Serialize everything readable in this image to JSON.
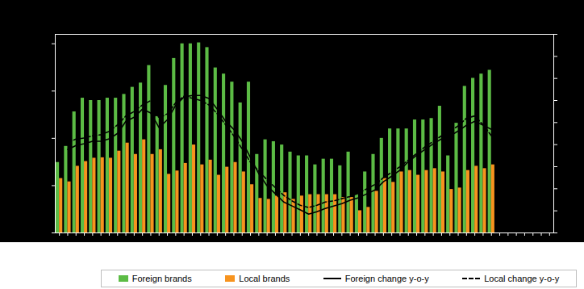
{
  "chart_data": {
    "type": "bar",
    "categories": [
      null,
      null,
      null,
      null,
      null,
      null,
      null,
      null,
      null,
      null,
      null,
      null,
      null,
      null,
      null,
      null,
      null,
      null,
      null,
      null,
      null,
      null,
      null,
      null,
      null,
      null,
      null,
      null,
      null,
      null,
      null,
      null,
      null,
      null,
      null,
      null,
      null,
      null,
      null,
      null,
      null,
      null,
      null,
      null,
      null,
      null,
      null,
      null,
      null,
      null,
      null,
      null,
      null,
      null,
      null,
      null,
      null,
      null,
      null,
      null
    ],
    "series": [
      {
        "name": "Foreign brands",
        "type": "bar",
        "color": "#5cbc45",
        "values": [
          14.9,
          18.3,
          25.6,
          28.5,
          28.0,
          28.0,
          28.5,
          28.5,
          29.3,
          30.8,
          31.7,
          35.4,
          24.6,
          31.2,
          36.9,
          40.0,
          40.0,
          40.2,
          39.2,
          34.9,
          33.6,
          31.9,
          27.5,
          31.9,
          16.6,
          19.7,
          19.3,
          18.6,
          17.1,
          16.3,
          16.3,
          14.4,
          15.6,
          15.6,
          14.2,
          17.1,
          8.1,
          12.9,
          16.6,
          20.0,
          22.0,
          22.0,
          22.0,
          23.9,
          23.9,
          24.2,
          26.8,
          16.3,
          23.2,
          31.0,
          32.7,
          33.6,
          34.4,
          null,
          null,
          null,
          null,
          null,
          null,
          null
        ]
      },
      {
        "name": "Local brands",
        "type": "bar",
        "color": "#f7931e",
        "values": [
          11.5,
          10.8,
          14.1,
          15.1,
          15.8,
          15.9,
          15.8,
          17.3,
          19.0,
          16.6,
          19.7,
          16.6,
          17.6,
          12.4,
          13.1,
          14.7,
          18.6,
          14.4,
          15.4,
          12.2,
          13.9,
          14.9,
          12.9,
          10.2,
          7.3,
          7.1,
          7.8,
          8.5,
          7.1,
          7.8,
          8.1,
          8.1,
          8.1,
          8.1,
          7.5,
          7.5,
          4.7,
          5.4,
          8.8,
          11.5,
          10.7,
          12.9,
          13.2,
          12.2,
          13.2,
          13.6,
          12.9,
          9.2,
          9.5,
          13.2,
          14.1,
          13.6,
          14.4,
          null,
          null,
          null,
          null,
          null,
          null,
          null
        ]
      },
      {
        "name": "Foreign change y-o-y",
        "type": "line",
        "axis": "y2",
        "color": "#000000",
        "line_style": "solid",
        "values": [
          null,
          -2.2,
          -0.4,
          0.4,
          1.5,
          1.5,
          2.6,
          5.1,
          10.6,
          12.4,
          16.1,
          14.3,
          7.7,
          11.3,
          17.9,
          21.6,
          22.3,
          22.3,
          20.9,
          16.1,
          10.6,
          6.9,
          1.5,
          -5.9,
          -13.2,
          -18.7,
          -22.3,
          -26.0,
          -27.8,
          -29.6,
          -31.5,
          -30.4,
          -28.9,
          -27.8,
          -26.7,
          -25.2,
          -24.1,
          -22.3,
          -20.5,
          -16.8,
          -14.3,
          -11.5,
          -7.7,
          -4.8,
          -2.2,
          0.4,
          2.6,
          3.9,
          6.2,
          8.8,
          10.6,
          8.8,
          6.9,
          null,
          null,
          null,
          null,
          null,
          null,
          null
        ]
      },
      {
        "name": "Local change y-o-y",
        "type": "line",
        "axis": "y2",
        "color": "#000000",
        "line_style": "dashed",
        "values": [
          null,
          1.0,
          2.5,
          3.0,
          4.0,
          4.5,
          6.0,
          9.0,
          13.0,
          15.0,
          18.0,
          20.0,
          12.0,
          14.0,
          19.0,
          22.0,
          21.0,
          20.0,
          18.0,
          14.0,
          9.0,
          4.0,
          -2.0,
          -8.0,
          -12.0,
          -16.0,
          -19.5,
          -23.0,
          -25.5,
          -27.5,
          -28.5,
          -27.5,
          -26.0,
          -25.5,
          -24.5,
          -23.5,
          -22.0,
          -20.0,
          -18.0,
          -15.0,
          -12.5,
          -10.0,
          -7.0,
          -4.0,
          -1.0,
          1.5,
          4.0,
          6.0,
          8.5,
          12.0,
          13.0,
          9.0,
          4.0,
          null,
          null,
          null,
          null,
          null,
          null,
          null
        ]
      }
    ],
    "ylim": [
      0,
      42
    ],
    "yticks": [
      0,
      10,
      20,
      30,
      40
    ],
    "y2lim": [
      -40,
      50
    ],
    "y2ticks": [
      -40,
      -30,
      -20,
      -10,
      0,
      10,
      20,
      30,
      40,
      50
    ],
    "grid": false,
    "tick_labels": false,
    "legend": "bottom"
  }
}
